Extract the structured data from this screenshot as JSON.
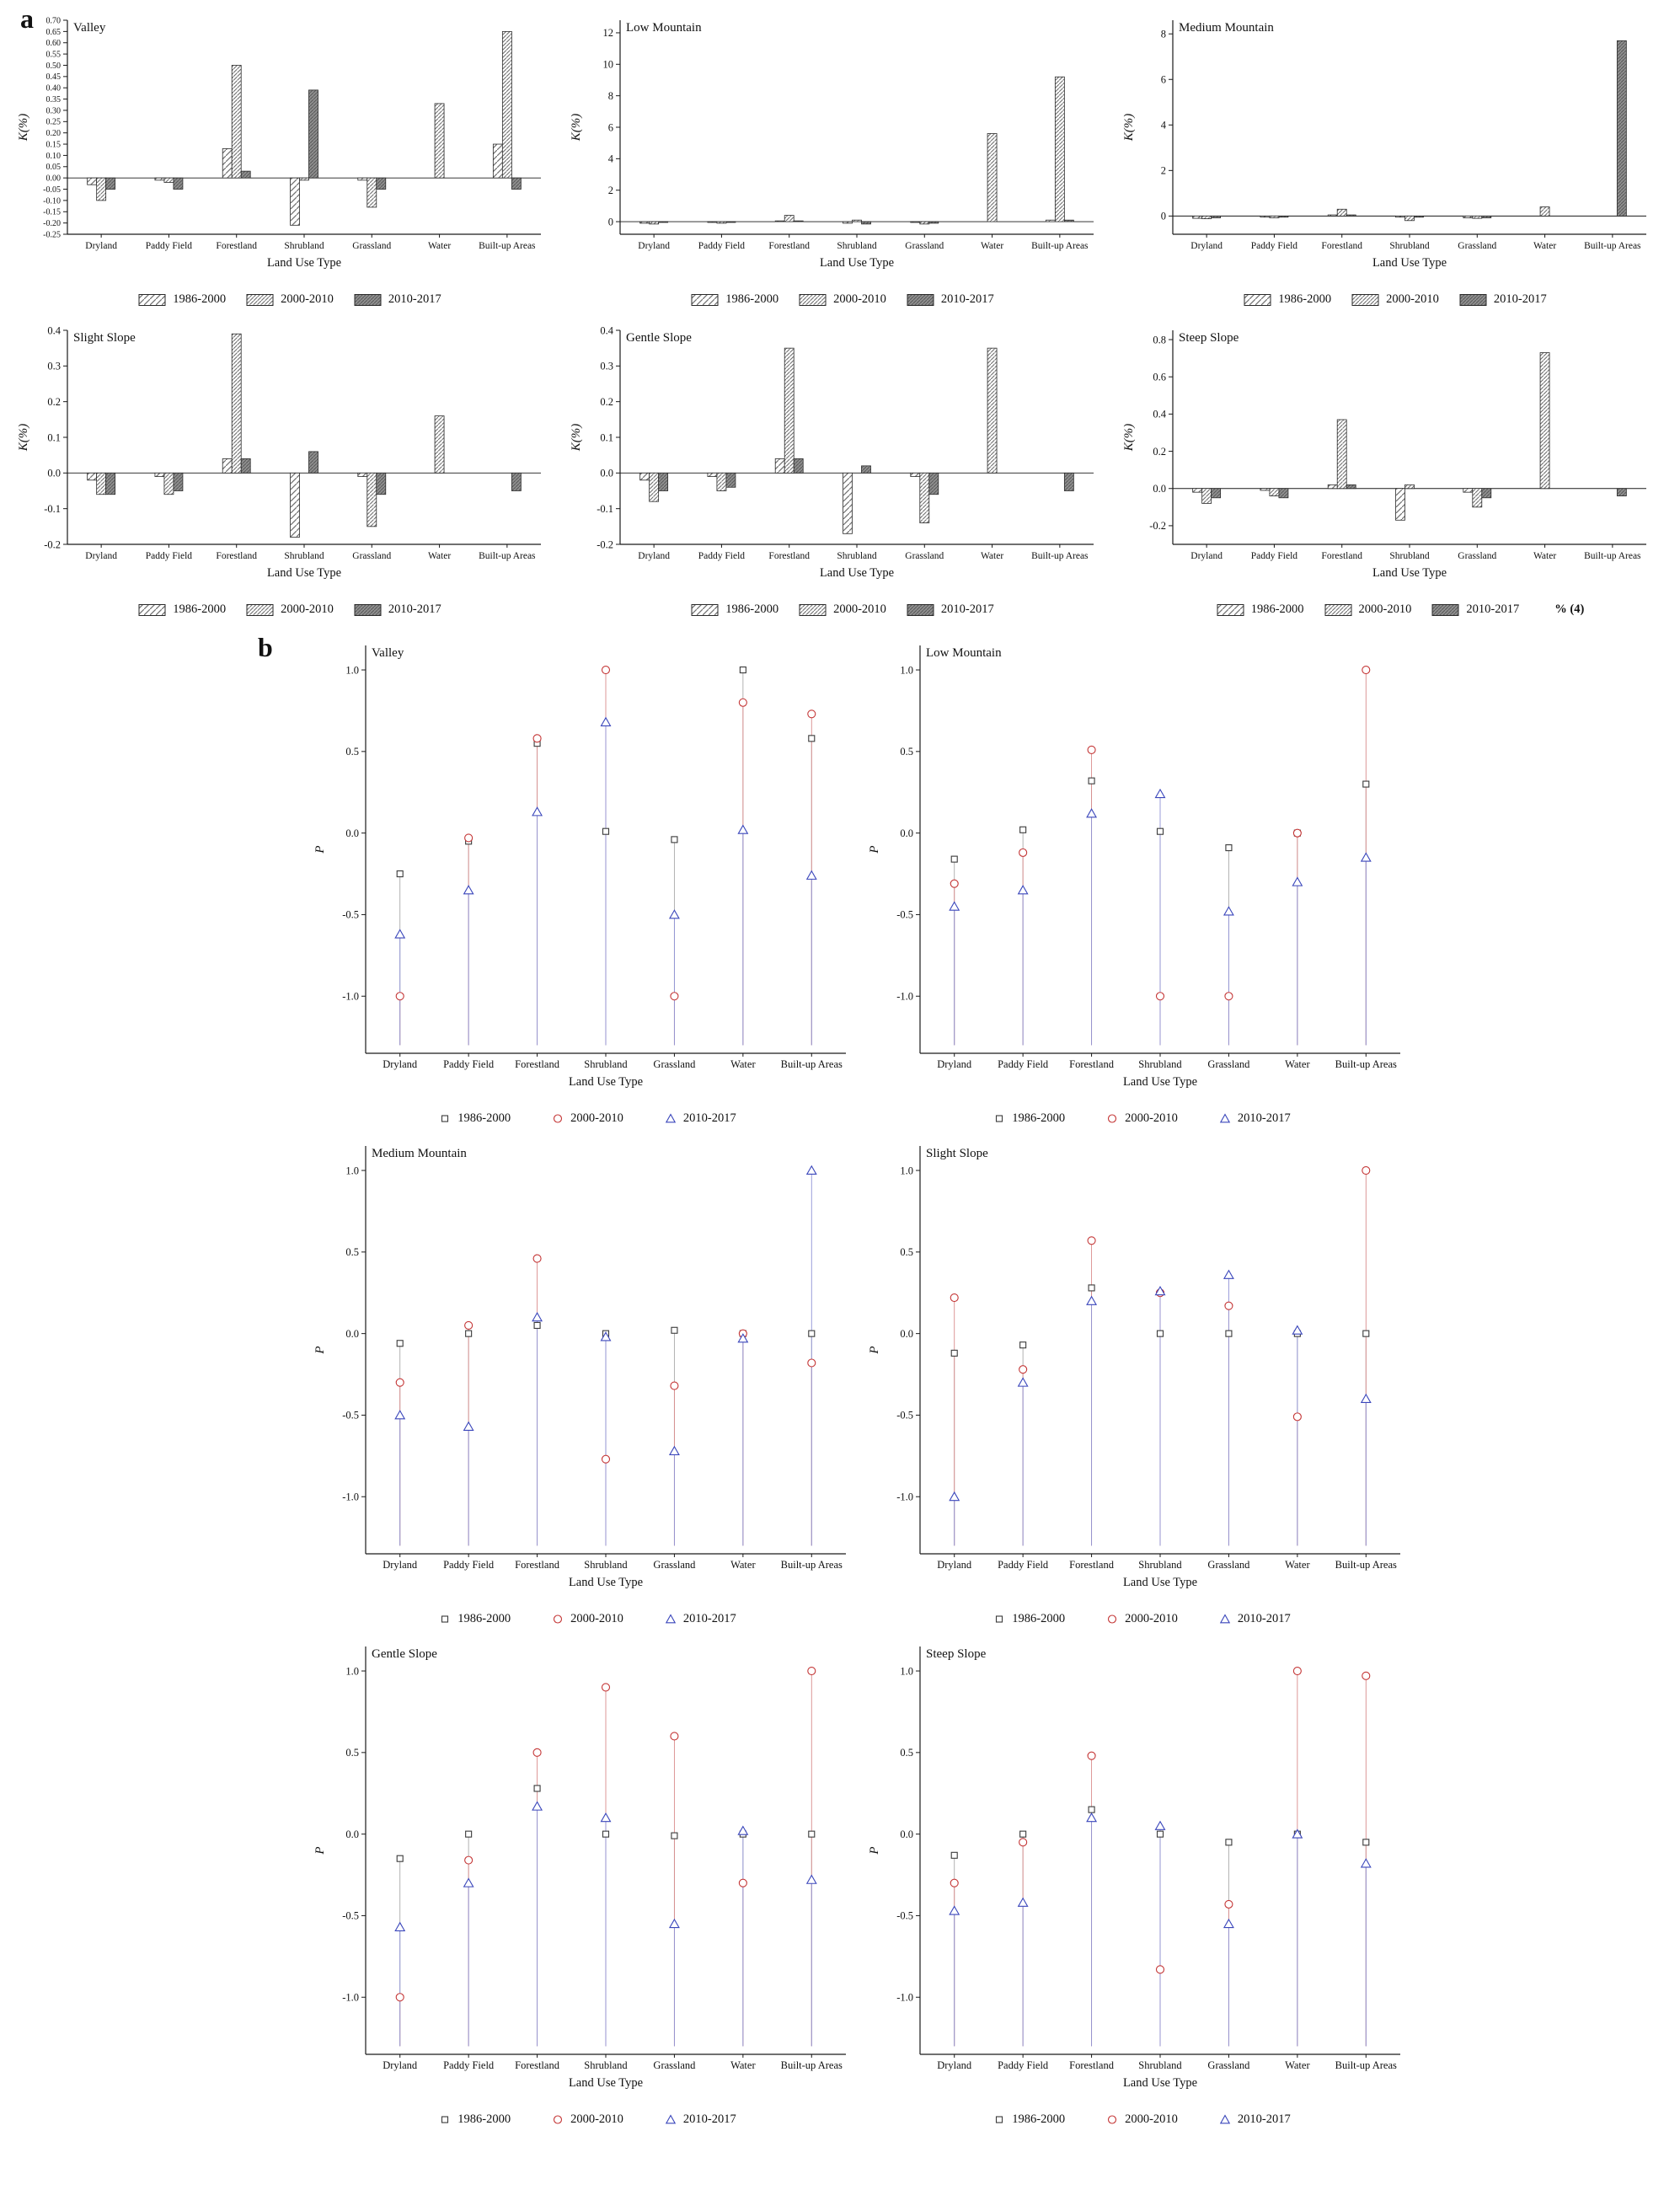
{
  "figure": {
    "panel_a_label": "a",
    "panel_b_label": "b"
  },
  "categories": [
    "Dryland",
    "Paddy Field",
    "Forestland",
    "Shrubland",
    "Grassland",
    "Water",
    "Built-up Areas"
  ],
  "series_labels": [
    "1986-2000",
    "2000-2010",
    "2010-2017"
  ],
  "colors": {
    "axis": "#1a1a1a",
    "bar_stroke": "#2a2a2a",
    "series_square": "#3a3a3a",
    "series_circle": "#c43535",
    "series_triangle": "#3a46bb",
    "stem_square": "#aaaaaa",
    "stem_circle": "#d98c8c",
    "stem_triangle": "#9093d6"
  },
  "chart_data": [
    {
      "id": "valley-k",
      "panel": "a",
      "type": "bar",
      "title": "Valley",
      "ylabel": "K(%)",
      "xlabel": "Land Use Type",
      "ylim": [
        -0.25,
        0.7
      ],
      "ytick_decimals": 2,
      "yticks": [
        -0.25,
        -0.2,
        -0.15,
        -0.1,
        -0.05,
        0.0,
        0.05,
        0.1,
        0.15,
        0.2,
        0.25,
        0.3,
        0.35,
        0.4,
        0.45,
        0.5,
        0.55,
        0.6,
        0.65,
        0.7
      ],
      "series": [
        {
          "name": "1986-2000",
          "values": [
            -0.03,
            -0.01,
            0.13,
            -0.21,
            -0.01,
            0,
            0.15
          ]
        },
        {
          "name": "2000-2010",
          "values": [
            -0.1,
            -0.02,
            0.5,
            -0.01,
            -0.13,
            0.33,
            0.65
          ]
        },
        {
          "name": "2010-2017",
          "values": [
            -0.05,
            -0.05,
            0.03,
            0.39,
            -0.05,
            0,
            -0.05
          ]
        }
      ]
    },
    {
      "id": "low-mountain-k",
      "panel": "a",
      "type": "bar",
      "title": "Low Mountain",
      "ylabel": "K(%)",
      "xlabel": "Land Use Type",
      "ylim": [
        -0.8,
        12.8
      ],
      "ytick_decimals": 0,
      "yticks": [
        0,
        2,
        4,
        6,
        8,
        10,
        12
      ],
      "series": [
        {
          "name": "1986-2000",
          "values": [
            -0.1,
            -0.05,
            0.05,
            -0.1,
            -0.05,
            0,
            0.1
          ]
        },
        {
          "name": "2000-2010",
          "values": [
            -0.15,
            -0.1,
            0.4,
            0.1,
            -0.15,
            5.6,
            9.2
          ]
        },
        {
          "name": "2010-2017",
          "values": [
            -0.05,
            -0.05,
            0.05,
            -0.15,
            -0.1,
            0,
            0.1
          ]
        }
      ]
    },
    {
      "id": "medium-mountain-k",
      "panel": "a",
      "type": "bar",
      "title": "Medium Mountain",
      "ylabel": "K(%)",
      "xlabel": "Land Use Type",
      "ylim": [
        -0.8,
        8.6
      ],
      "ytick_decimals": 0,
      "yticks": [
        0,
        2,
        4,
        6,
        8
      ],
      "series": [
        {
          "name": "1986-2000",
          "values": [
            -0.1,
            -0.05,
            0.05,
            -0.05,
            -0.08,
            0,
            0
          ]
        },
        {
          "name": "2000-2010",
          "values": [
            -0.12,
            -0.08,
            0.3,
            -0.2,
            -0.1,
            0.4,
            0
          ]
        },
        {
          "name": "2010-2017",
          "values": [
            -0.08,
            -0.05,
            0.05,
            -0.05,
            -0.08,
            0,
            7.7
          ]
        }
      ]
    },
    {
      "id": "slight-slope-k",
      "panel": "a",
      "type": "bar",
      "title": "Slight Slope",
      "ylabel": "K(%)",
      "xlabel": "Land Use Type",
      "ylim": [
        -0.2,
        0.4
      ],
      "ytick_decimals": 1,
      "yticks": [
        -0.2,
        -0.1,
        0.0,
        0.1,
        0.2,
        0.3,
        0.4
      ],
      "series": [
        {
          "name": "1986-2000",
          "values": [
            -0.02,
            -0.01,
            0.04,
            -0.18,
            -0.01,
            0,
            0
          ]
        },
        {
          "name": "2000-2010",
          "values": [
            -0.06,
            -0.06,
            0.39,
            0,
            -0.15,
            0.16,
            0
          ]
        },
        {
          "name": "2010-2017",
          "values": [
            -0.06,
            -0.05,
            0.04,
            0.06,
            -0.06,
            0,
            -0.05
          ]
        }
      ]
    },
    {
      "id": "gentle-slope-k",
      "panel": "a",
      "type": "bar",
      "title": "Gentle Slope",
      "ylabel": "K(%)",
      "xlabel": "Land Use Type",
      "ylim": [
        -0.2,
        0.4
      ],
      "ytick_decimals": 1,
      "yticks": [
        -0.2,
        -0.1,
        0.0,
        0.1,
        0.2,
        0.3,
        0.4
      ],
      "series": [
        {
          "name": "1986-2000",
          "values": [
            -0.02,
            -0.01,
            0.04,
            -0.17,
            -0.01,
            0,
            0
          ]
        },
        {
          "name": "2000-2010",
          "values": [
            -0.08,
            -0.05,
            0.35,
            0,
            -0.14,
            0.35,
            0
          ]
        },
        {
          "name": "2010-2017",
          "values": [
            -0.05,
            -0.04,
            0.04,
            0.02,
            -0.06,
            0,
            -0.05
          ]
        }
      ]
    },
    {
      "id": "steep-slope-k",
      "panel": "a",
      "type": "bar",
      "title": "Steep Slope",
      "ylabel": "K(%)",
      "xlabel": "Land Use Type",
      "ylim": [
        -0.3,
        0.85
      ],
      "ytick_decimals": 1,
      "yticks": [
        -0.2,
        0.0,
        0.2,
        0.4,
        0.6,
        0.8
      ],
      "legend_note": "% (4)",
      "series": [
        {
          "name": "1986-2000",
          "values": [
            -0.02,
            -0.01,
            0.02,
            -0.17,
            -0.02,
            0,
            0
          ]
        },
        {
          "name": "2000-2010",
          "values": [
            -0.08,
            -0.04,
            0.37,
            0.02,
            -0.1,
            0.73,
            0
          ]
        },
        {
          "name": "2010-2017",
          "values": [
            -0.05,
            -0.05,
            0.02,
            0,
            -0.05,
            0,
            -0.04
          ]
        }
      ]
    },
    {
      "id": "valley-p",
      "panel": "b",
      "type": "stem",
      "title": "Valley",
      "ylabel": "P",
      "xlabel": "Land Use Type",
      "ylim": [
        -1.35,
        1.15
      ],
      "ytick_decimals": 1,
      "stem_base": -1.3,
      "yticks": [
        -1.0,
        -0.5,
        0.0,
        0.5,
        1.0
      ],
      "series": [
        {
          "name": "1986-2000",
          "values": [
            -0.25,
            -0.05,
            0.55,
            0.01,
            -0.04,
            1.0,
            0.58
          ]
        },
        {
          "name": "2000-2010",
          "values": [
            -1.0,
            -0.03,
            0.58,
            1.0,
            -1.0,
            0.8,
            0.73
          ]
        },
        {
          "name": "2010-2017",
          "values": [
            -0.62,
            -0.35,
            0.13,
            0.68,
            -0.5,
            0.02,
            -0.26
          ]
        }
      ]
    },
    {
      "id": "low-mountain-p",
      "panel": "b",
      "type": "stem",
      "title": "Low Mountain",
      "ylabel": "P",
      "xlabel": "Land Use Type",
      "ylim": [
        -1.35,
        1.15
      ],
      "ytick_decimals": 1,
      "stem_base": -1.3,
      "yticks": [
        -1.0,
        -0.5,
        0.0,
        0.5,
        1.0
      ],
      "series": [
        {
          "name": "1986-2000",
          "values": [
            -0.16,
            0.02,
            0.32,
            0.01,
            -0.09,
            0,
            0.3
          ]
        },
        {
          "name": "2000-2010",
          "values": [
            -0.31,
            -0.12,
            0.51,
            -1.0,
            -1.0,
            0,
            1.0
          ]
        },
        {
          "name": "2010-2017",
          "values": [
            -0.45,
            -0.35,
            0.12,
            0.24,
            -0.48,
            -0.3,
            -0.15
          ]
        }
      ]
    },
    {
      "id": "medium-mountain-p",
      "panel": "b",
      "type": "stem",
      "title": "Medium Mountain",
      "ylabel": "P",
      "xlabel": "Land Use Type",
      "ylim": [
        -1.35,
        1.15
      ],
      "ytick_decimals": 1,
      "stem_base": -1.3,
      "yticks": [
        -1.0,
        -0.5,
        0.0,
        0.5,
        1.0
      ],
      "series": [
        {
          "name": "1986-2000",
          "values": [
            -0.06,
            0,
            0.05,
            0,
            0.02,
            0,
            0
          ]
        },
        {
          "name": "2000-2010",
          "values": [
            -0.3,
            0.05,
            0.46,
            -0.77,
            -0.32,
            0,
            -0.18
          ]
        },
        {
          "name": "2010-2017",
          "values": [
            -0.5,
            -0.57,
            0.1,
            -0.02,
            -0.72,
            -0.03,
            1.0
          ]
        }
      ]
    },
    {
      "id": "slight-slope-p",
      "panel": "b",
      "type": "stem",
      "title": "Slight Slope",
      "ylabel": "P",
      "xlabel": "Land Use Type",
      "ylim": [
        -1.35,
        1.15
      ],
      "ytick_decimals": 1,
      "stem_base": -1.3,
      "yticks": [
        -1.0,
        -0.5,
        0.0,
        0.5,
        1.0
      ],
      "series": [
        {
          "name": "1986-2000",
          "values": [
            -0.12,
            -0.07,
            0.28,
            0,
            0,
            0,
            0
          ]
        },
        {
          "name": "2000-2010",
          "values": [
            0.22,
            -0.22,
            0.57,
            0.25,
            0.17,
            -0.51,
            1.0
          ]
        },
        {
          "name": "2010-2017",
          "values": [
            -1.0,
            -0.3,
            0.2,
            0.26,
            0.36,
            0.02,
            -0.4
          ]
        }
      ]
    },
    {
      "id": "gentle-slope-p",
      "panel": "b",
      "type": "stem",
      "title": "Gentle Slope",
      "ylabel": "P",
      "xlabel": "Land Use Type",
      "ylim": [
        -1.35,
        1.15
      ],
      "ytick_decimals": 1,
      "stem_base": -1.3,
      "yticks": [
        -1.0,
        -0.5,
        0.0,
        0.5,
        1.0
      ],
      "series": [
        {
          "name": "1986-2000",
          "values": [
            -0.15,
            0,
            0.28,
            0,
            -0.01,
            0,
            0
          ]
        },
        {
          "name": "2000-2010",
          "values": [
            -1.0,
            -0.16,
            0.5,
            0.9,
            0.6,
            -0.3,
            1.0
          ]
        },
        {
          "name": "2010-2017",
          "values": [
            -0.57,
            -0.3,
            0.17,
            0.1,
            -0.55,
            0.02,
            -0.28
          ]
        }
      ]
    },
    {
      "id": "steep-slope-p",
      "panel": "b",
      "type": "stem",
      "title": "Steep Slope",
      "ylabel": "P",
      "xlabel": "Land Use Type",
      "ylim": [
        -1.35,
        1.15
      ],
      "ytick_decimals": 1,
      "stem_base": -1.3,
      "yticks": [
        -1.0,
        -0.5,
        0.0,
        0.5,
        1.0
      ],
      "series": [
        {
          "name": "1986-2000",
          "values": [
            -0.13,
            0,
            0.15,
            0,
            -0.05,
            0,
            -0.05
          ]
        },
        {
          "name": "2000-2010",
          "values": [
            -0.3,
            -0.05,
            0.48,
            -0.83,
            -0.43,
            1.0,
            0.97
          ]
        },
        {
          "name": "2010-2017",
          "values": [
            -0.47,
            -0.42,
            0.1,
            0.05,
            -0.55,
            0,
            -0.18
          ]
        }
      ]
    }
  ]
}
